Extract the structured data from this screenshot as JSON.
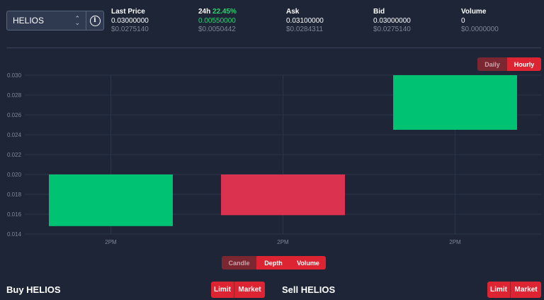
{
  "market": {
    "selected": "HELIOS"
  },
  "stats": {
    "last_price": {
      "label": "Last Price",
      "value": "0.03000000",
      "usd": "$0.0275140"
    },
    "change_24h": {
      "label": "24h",
      "percent": "22.45%",
      "value": "0.00550000",
      "usd": "$0.0050442"
    },
    "ask": {
      "label": "Ask",
      "value": "0.03100000",
      "usd": "$0.0284311"
    },
    "bid": {
      "label": "Bid",
      "value": "0.03000000",
      "usd": "$0.0275140"
    },
    "volume": {
      "label": "Volume",
      "value": "0",
      "usd": "$0.0000000"
    }
  },
  "interval_toggle": {
    "daily": "Daily",
    "hourly": "Hourly",
    "active": "Hourly"
  },
  "chart_view_toggle": {
    "candle": "Candle",
    "depth": "Depth",
    "volume": "Volume",
    "active": "Depth"
  },
  "chart_data": {
    "type": "candlestick",
    "y_ticks": [
      "0.030",
      "0.028",
      "0.026",
      "0.024",
      "0.022",
      "0.020",
      "0.018",
      "0.016",
      "0.014"
    ],
    "ylim": [
      0.014,
      0.03
    ],
    "x_ticks": [
      "2PM",
      "2PM",
      "2PM"
    ],
    "candles": [
      {
        "open": 0.0148,
        "close": 0.02,
        "direction": "up"
      },
      {
        "open": 0.02,
        "close": 0.0159,
        "direction": "down"
      },
      {
        "open": 0.0245,
        "close": 0.03,
        "direction": "up"
      }
    ],
    "grid": true,
    "colors": {
      "up": "#00c273",
      "down": "#db3250",
      "grid": "#2c3649"
    }
  },
  "buy_panel": {
    "title": "Buy HELIOS",
    "limit": "Limit",
    "market": "Market"
  },
  "sell_panel": {
    "title": "Sell HELIOS",
    "limit": "Limit",
    "market": "Market"
  }
}
